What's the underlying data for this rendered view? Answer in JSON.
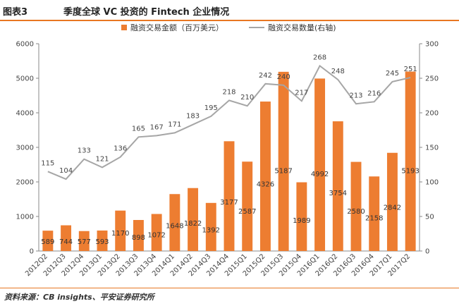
{
  "header": {
    "figure_number": "图表3",
    "title": "季度全球 VC 投资的 Fintech 企业情况"
  },
  "footer": {
    "source": "资料来源：CB insights、平安证券研究所"
  },
  "colors": {
    "bar": "#ED7D31",
    "line": "#A6A6A6",
    "accent_rule": "#E87722"
  },
  "chart_data": {
    "type": "bar",
    "title": "",
    "categories": [
      "2012Q2",
      "2012Q3",
      "2012Q4",
      "2013Q1",
      "2013Q2",
      "2013Q3",
      "2013Q4",
      "2014Q1",
      "2014Q2",
      "2014Q3",
      "2014Q4",
      "2015Q1",
      "2015Q2",
      "2015Q3",
      "2015Q4",
      "2016Q1",
      "2016Q2",
      "2016Q3",
      "2016Q4",
      "2017Q1",
      "2017Q2"
    ],
    "series": [
      {
        "name": "融资交易金额（百万美元）",
        "type": "bar",
        "axis": "left",
        "values": [
          589,
          744,
          577,
          593,
          1170,
          898,
          1072,
          1648,
          1822,
          1392,
          3177,
          2587,
          4326,
          5187,
          1989,
          4992,
          3754,
          2580,
          2158,
          2842,
          5193
        ]
      },
      {
        "name": "融资交易数量(右轴)",
        "type": "line",
        "axis": "right",
        "values": [
          115,
          104,
          133,
          121,
          136,
          165,
          167,
          171,
          183,
          195,
          218,
          210,
          242,
          240,
          217,
          268,
          248,
          213,
          216,
          245,
          251
        ]
      }
    ],
    "y_left": {
      "min": 0,
      "max": 6000,
      "ticks": [
        0,
        1000,
        2000,
        3000,
        4000,
        5000,
        6000
      ]
    },
    "y_right": {
      "min": 0,
      "max": 300,
      "ticks": [
        0,
        50,
        100,
        150,
        200,
        250,
        300
      ]
    },
    "legend_position": "top-center",
    "grid": false
  }
}
